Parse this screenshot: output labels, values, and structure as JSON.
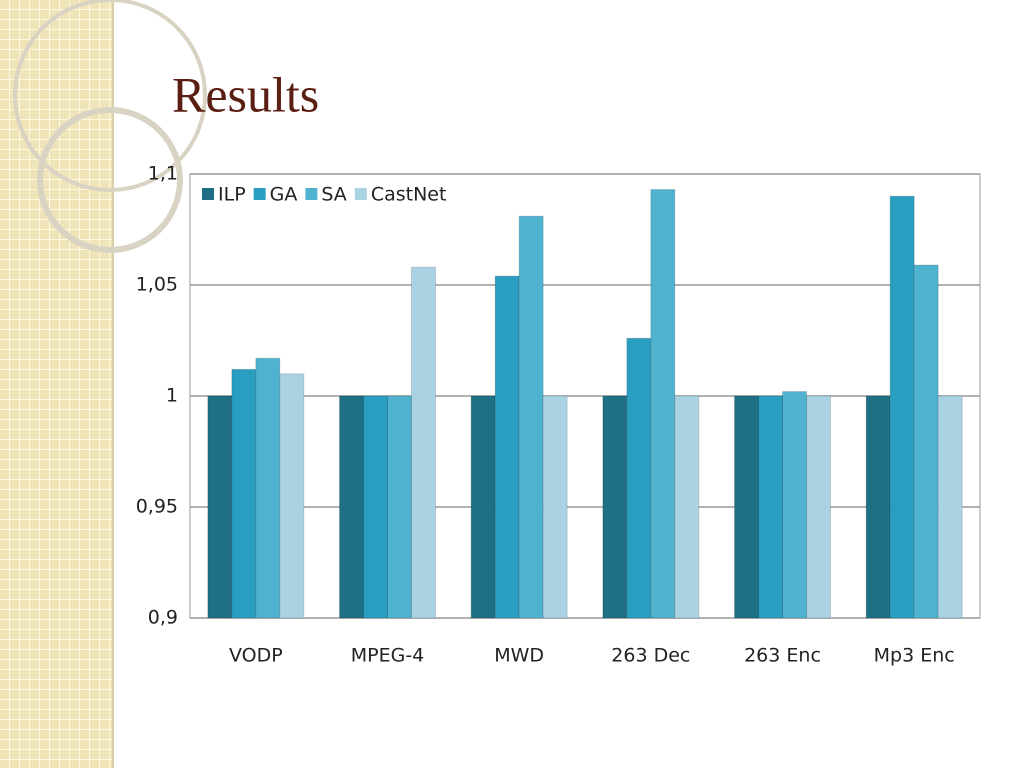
{
  "chart_data": {
    "type": "bar",
    "title": "Results",
    "categories": [
      "VODP",
      "MPEG-4",
      "MWD",
      "263 Dec",
      "263 Enc",
      "Mp3 Enc"
    ],
    "series": [
      {
        "name": "ILP",
        "color": "#1f6f85",
        "values": [
          1,
          1,
          1,
          1,
          1,
          1
        ]
      },
      {
        "name": "GA",
        "color": "#2a9ec0",
        "values": [
          1.012,
          1,
          1.054,
          1.026,
          1,
          1.09
        ]
      },
      {
        "name": "SA",
        "color": "#4fb3d0",
        "values": [
          1.017,
          1,
          1.081,
          1.093,
          1.002,
          1.059
        ]
      },
      {
        "name": "CastNet",
        "color": "#a9d3e3",
        "values": [
          1.01,
          1.058,
          1,
          1,
          1,
          1
        ]
      }
    ],
    "ylim": [
      0.9,
      1.1
    ],
    "yticks": [
      {
        "value": 0.9,
        "label": "0,9"
      },
      {
        "value": 0.95,
        "label": "0,95"
      },
      1,
      {
        "value": 1.05,
        "label": "1,05"
      },
      {
        "value": 1.1,
        "label": "1,1"
      }
    ],
    "grid": true,
    "legend": "top-left"
  }
}
